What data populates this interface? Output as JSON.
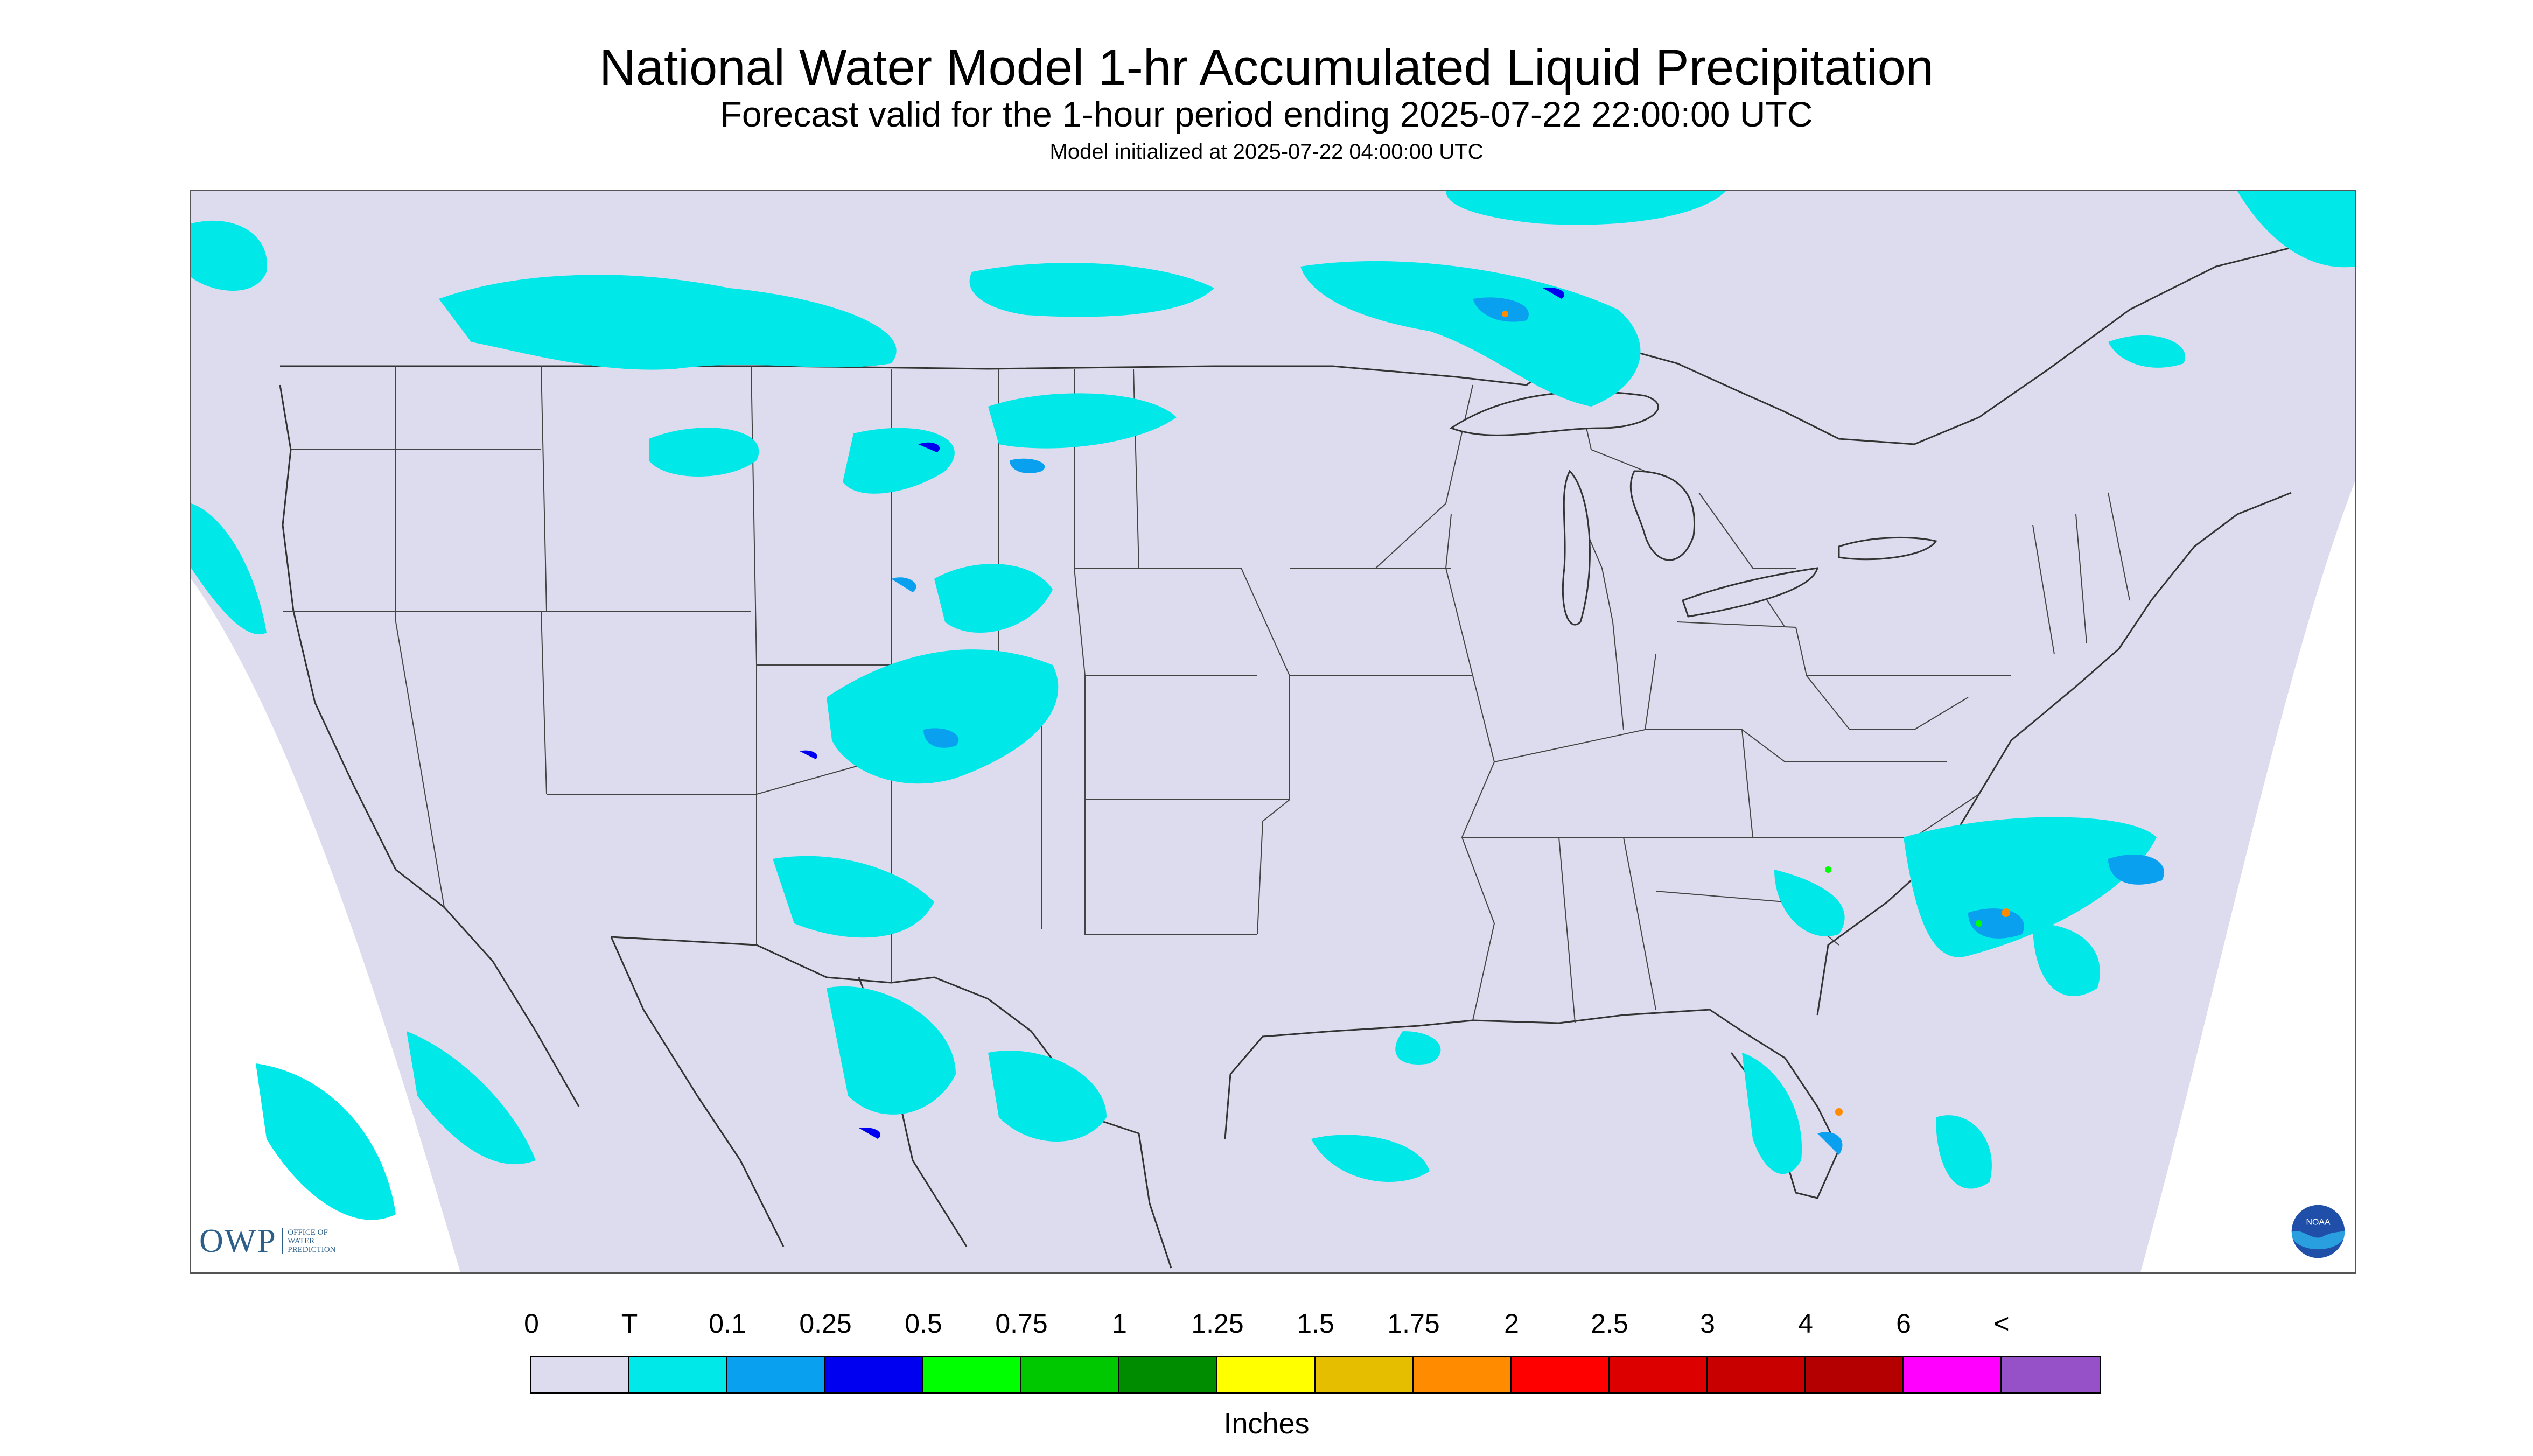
{
  "header": {
    "title": "National Water Model 1-hr Accumulated Liquid Precipitation",
    "subtitle": "Forecast valid for the 1-hour period ending 2025-07-22 22:00:00 UTC",
    "init": "Model initialized at 2025-07-22 04:00:00 UTC"
  },
  "map": {
    "region": "CONUS",
    "background_color": "#dcdcee",
    "outside_domain_color": "#ffffff",
    "boundary_color": "#333333"
  },
  "logos": {
    "owp_text": "OWP",
    "owp_subtext": [
      "OFFICE OF",
      "WATER",
      "PREDICTION"
    ],
    "noaa_text": "NOAA"
  },
  "legend": {
    "labels": [
      "0",
      "T",
      "0.1",
      "0.25",
      "0.5",
      "0.75",
      "1",
      "1.25",
      "1.5",
      "1.75",
      "2",
      "2.5",
      "3",
      "4",
      "6",
      "<"
    ],
    "colors": [
      "#dcdcee",
      "#00e8e8",
      "#0aa0f0",
      "#0000f0",
      "#00ff00",
      "#00c800",
      "#008c00",
      "#ffff00",
      "#e6be00",
      "#ff8c00",
      "#ff0000",
      "#dc0000",
      "#c80000",
      "#b40000",
      "#ff00ff",
      "#9650c8"
    ],
    "units": "Inches"
  }
}
